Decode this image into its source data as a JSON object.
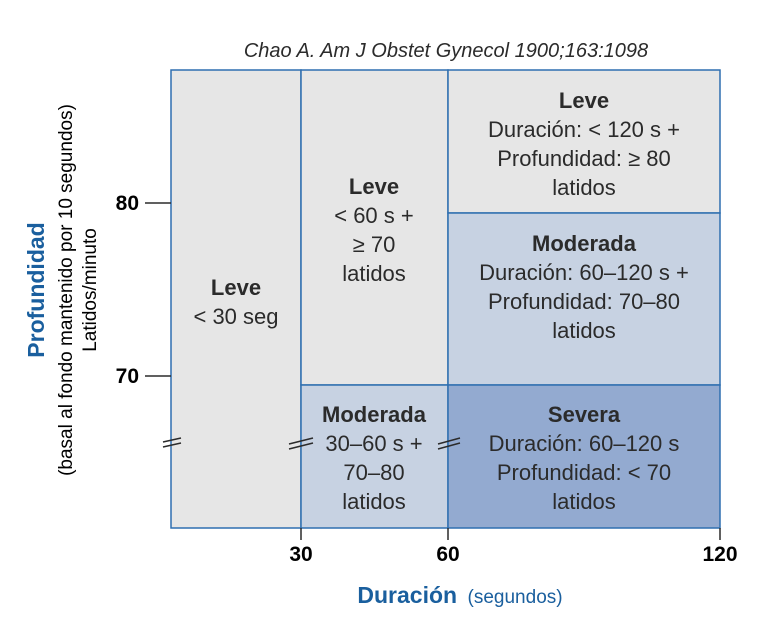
{
  "citation": "Chao A. Am J Obstet Gynecol 1900;163:1098",
  "colors": {
    "light": "#e6e6e6",
    "medium": "#c7d2e2",
    "dark": "#93aad0",
    "border": "#2f6fb0",
    "axis_title": "#1a5f9e",
    "text": "#2b2b2b"
  },
  "y_axis": {
    "title": "Profundidad",
    "subtitle": "(basal al fondo mantenido por 10 segundos)",
    "unit": "Latidos/minuto",
    "ticks": [
      "80",
      "70"
    ]
  },
  "x_axis": {
    "title": "Duración",
    "unit": "(segundos)",
    "ticks": [
      "30",
      "60",
      "120"
    ]
  },
  "cells": [
    {
      "id": "cell-leve-under-30",
      "severity": "Leve",
      "lines": [
        "< 30 seg"
      ],
      "fill": "light"
    },
    {
      "id": "cell-leve-30-60",
      "severity": "Leve",
      "lines": [
        "< 60 s +",
        "≥ 70",
        "latidos"
      ],
      "fill": "light"
    },
    {
      "id": "cell-moderada-30-60",
      "severity": "Moderada",
      "lines": [
        "30–60 s +",
        "70–80",
        "latidos"
      ],
      "fill": "medium"
    },
    {
      "id": "cell-leve-60-120",
      "severity": "Leve",
      "lines": [
        "Duración: < 120 s +",
        "Profundidad: ≥ 80",
        "latidos"
      ],
      "fill": "light"
    },
    {
      "id": "cell-moderada-60-120",
      "severity": "Moderada",
      "lines": [
        "Duración: 60–120 s +",
        "Profundidad: 70–80",
        "latidos"
      ],
      "fill": "medium"
    },
    {
      "id": "cell-severa-60-120",
      "severity": "Severa",
      "lines": [
        "Duración: 60–120 s",
        "Profundidad: < 70",
        "latidos"
      ],
      "fill": "dark"
    }
  ]
}
